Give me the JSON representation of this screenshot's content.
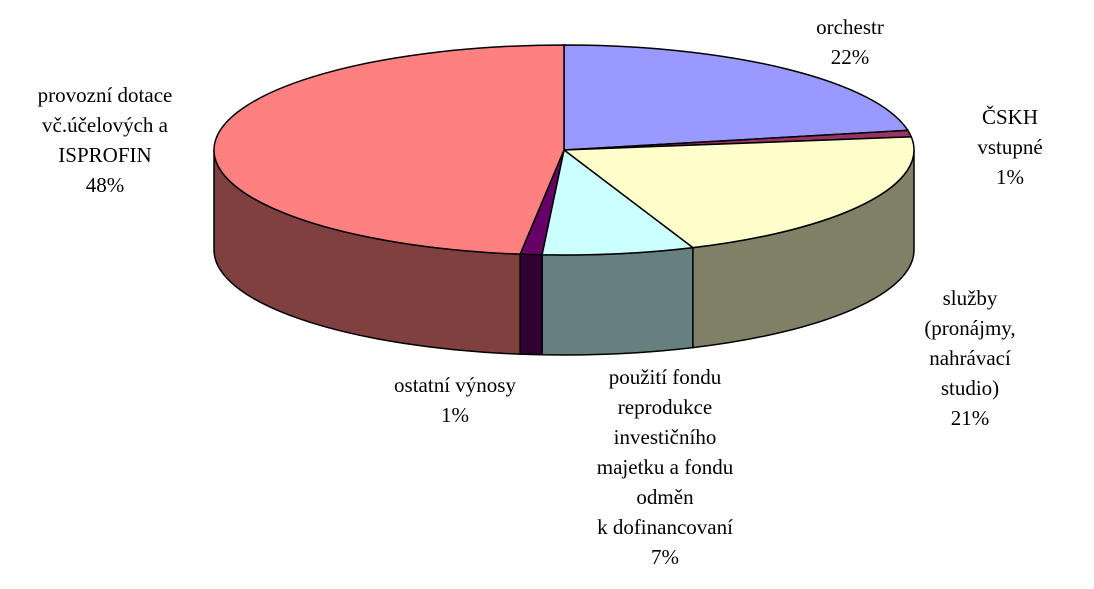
{
  "chart_data": {
    "type": "pie3d",
    "categories": [
      "orchestr",
      "ČSKH vstupné",
      "služby (pronájmy,\nnahrávací studio)",
      "použití fondu\nreprodukce\ninvestičního\nmajetku a fondu\nodměn\nk dofinancovaní",
      "ostatní výnosy",
      "provozní dotace\nvč.účelových a\nISPROFIN"
    ],
    "values": [
      22,
      1,
      21,
      7,
      1,
      48
    ],
    "value_labels": [
      "22%",
      "1%",
      "21%",
      "7%",
      "1%",
      "48%"
    ],
    "colors": [
      "#9999ff",
      "#993366",
      "#ffffcc",
      "#ccffff",
      "#660066",
      "#ff8080"
    ]
  }
}
